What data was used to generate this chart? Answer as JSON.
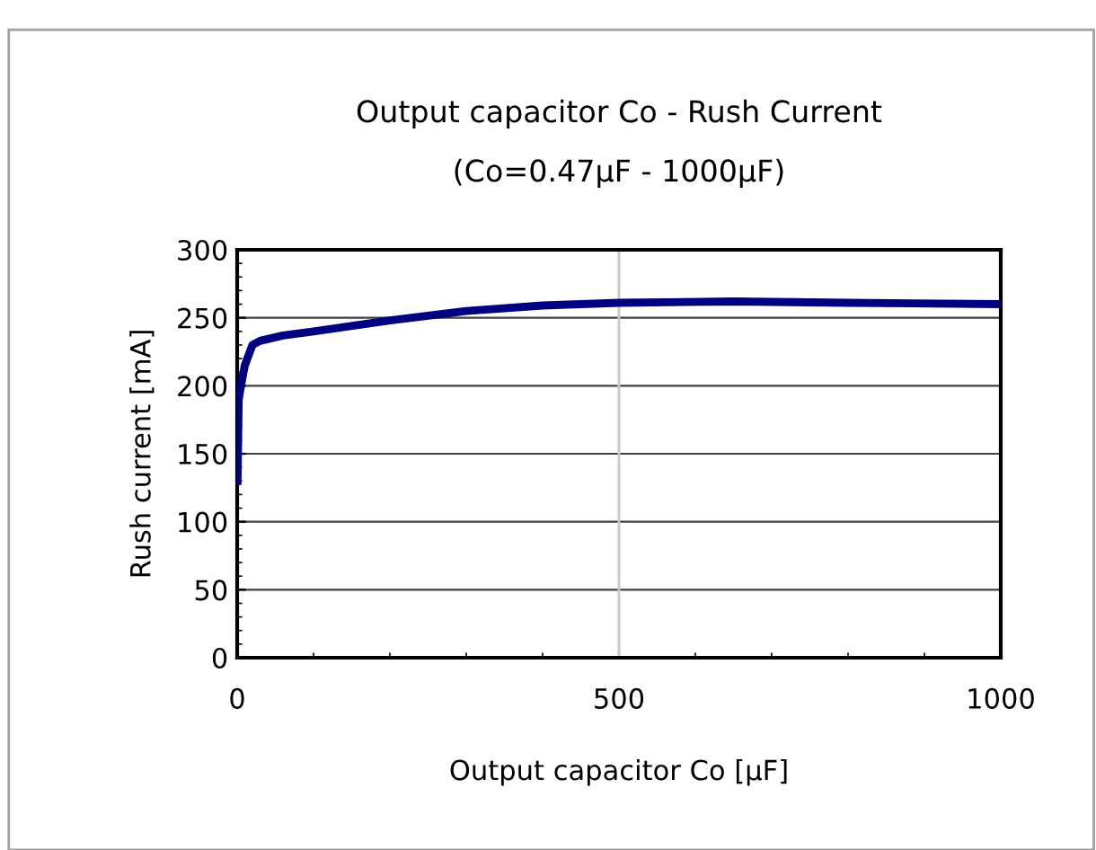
{
  "chart_data": {
    "type": "line",
    "title": "Output capacitor Co - Rush Current",
    "subtitle": "(Co=0.47μF - 1000μF)",
    "xlabel": "Output capacitor Co [μF]",
    "ylabel": "Rush current [mA]",
    "series": [
      {
        "color": "#000080",
        "x": [
          0.47,
          2,
          5,
          10,
          20,
          30,
          60,
          100,
          200,
          300,
          400,
          500,
          650,
          800,
          1000
        ],
        "values": [
          130,
          190,
          200,
          215,
          230,
          233,
          237,
          240,
          248,
          255,
          259,
          261,
          262,
          261,
          260
        ]
      }
    ],
    "xlim": [
      0,
      1000
    ],
    "xticks": [
      0,
      500,
      1000
    ],
    "ylim": [
      0,
      300
    ],
    "yticks": [
      0,
      50,
      100,
      150,
      200,
      250,
      300
    ],
    "grid": "y",
    "ref_lines": [
      {
        "axis": "x",
        "value": 500,
        "color": "#c8c8c8"
      }
    ],
    "marker": "none",
    "line_style": "solid",
    "legend": false
  }
}
